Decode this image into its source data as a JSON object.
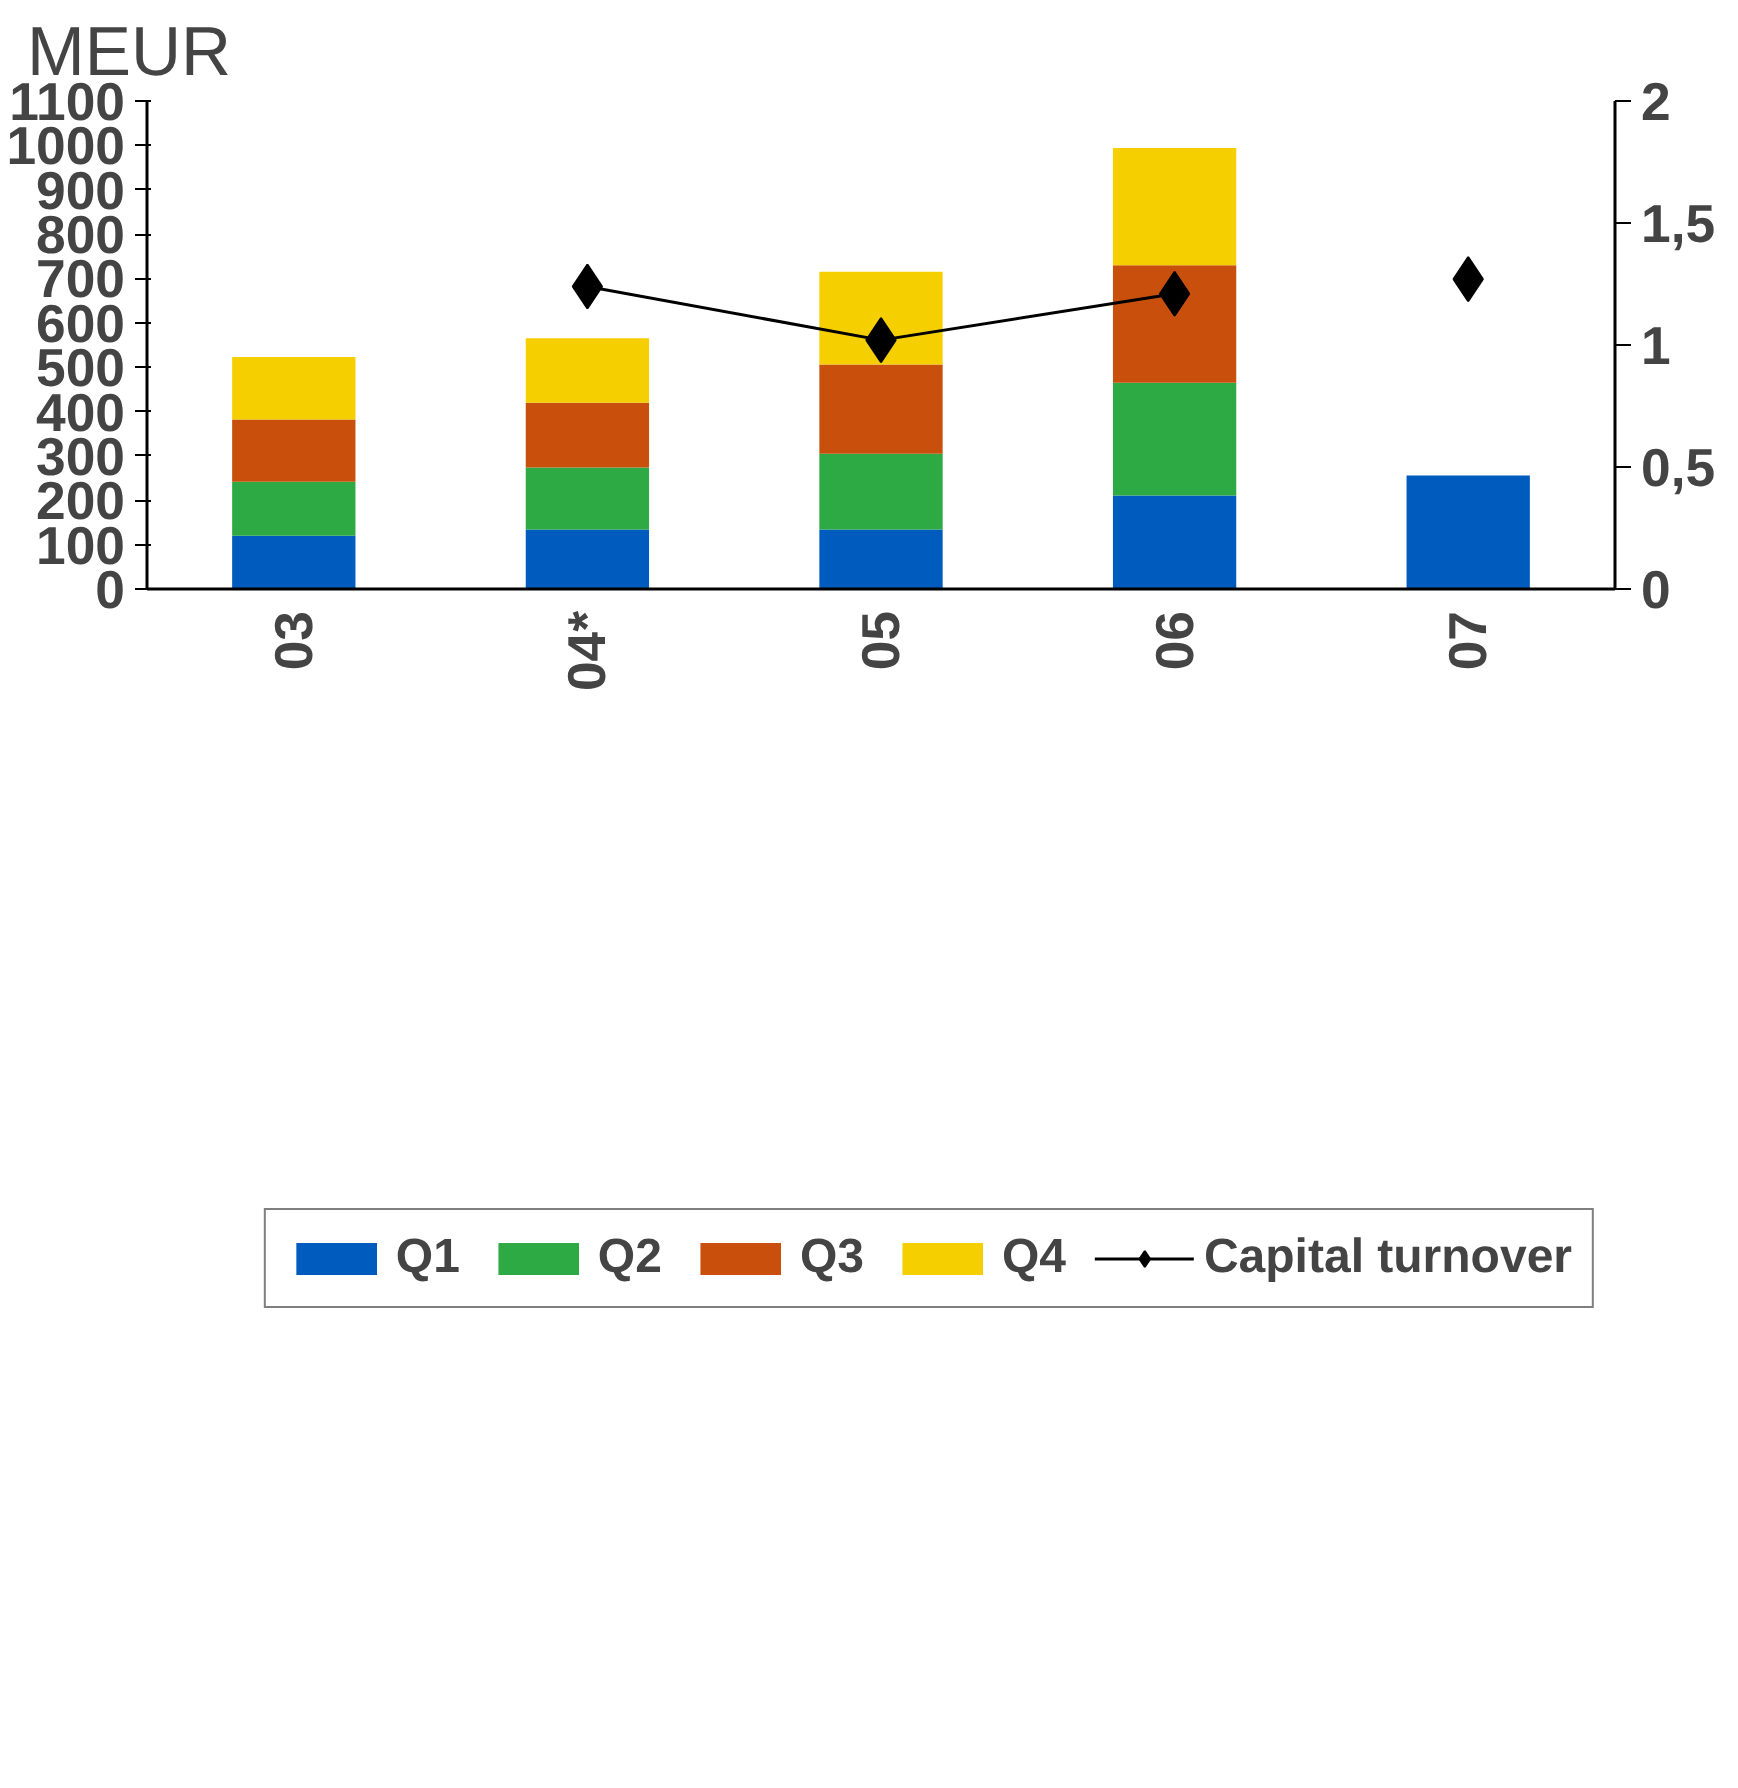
{
  "chart_data": {
    "type": "bar",
    "stacked": true,
    "ylabel": "MEUR",
    "categories": [
      "03",
      "04*",
      "05",
      "06",
      "07"
    ],
    "ylim": [
      0,
      1100
    ],
    "yticks": [
      0,
      100,
      200,
      300,
      400,
      500,
      600,
      700,
      800,
      900,
      1000,
      1100
    ],
    "y2lim": [
      0,
      2
    ],
    "y2ticks": [
      0,
      {
        "value": 0.5,
        "label": "0,5"
      },
      1,
      {
        "value": 1.5,
        "label": "1,5"
      },
      2
    ],
    "series": [
      {
        "name": "Q1",
        "color": "#005bbf",
        "values": [
          120,
          134,
          134,
          211,
          256
        ]
      },
      {
        "name": "Q2",
        "color": "#2eaa45",
        "values": [
          122,
          140,
          171,
          254,
          null
        ]
      },
      {
        "name": "Q3",
        "color": "#c8500c",
        "values": [
          140,
          146,
          201,
          265,
          null
        ]
      },
      {
        "name": "Q4",
        "color": "#f5cf00",
        "values": [
          141,
          145,
          209,
          264,
          null
        ]
      },
      {
        "name": "Capital turnover",
        "type": "line",
        "axis": "y2",
        "color": "#000000",
        "marker": "diamond",
        "values": [
          null,
          1.24,
          1.02,
          1.21,
          null
        ]
      },
      {
        "type": "scatter",
        "axis": "y2",
        "color": "#000000",
        "marker": "diamond",
        "values": [
          null,
          null,
          null,
          null,
          1.27
        ]
      }
    ],
    "grid": false,
    "legend": "bottom"
  }
}
